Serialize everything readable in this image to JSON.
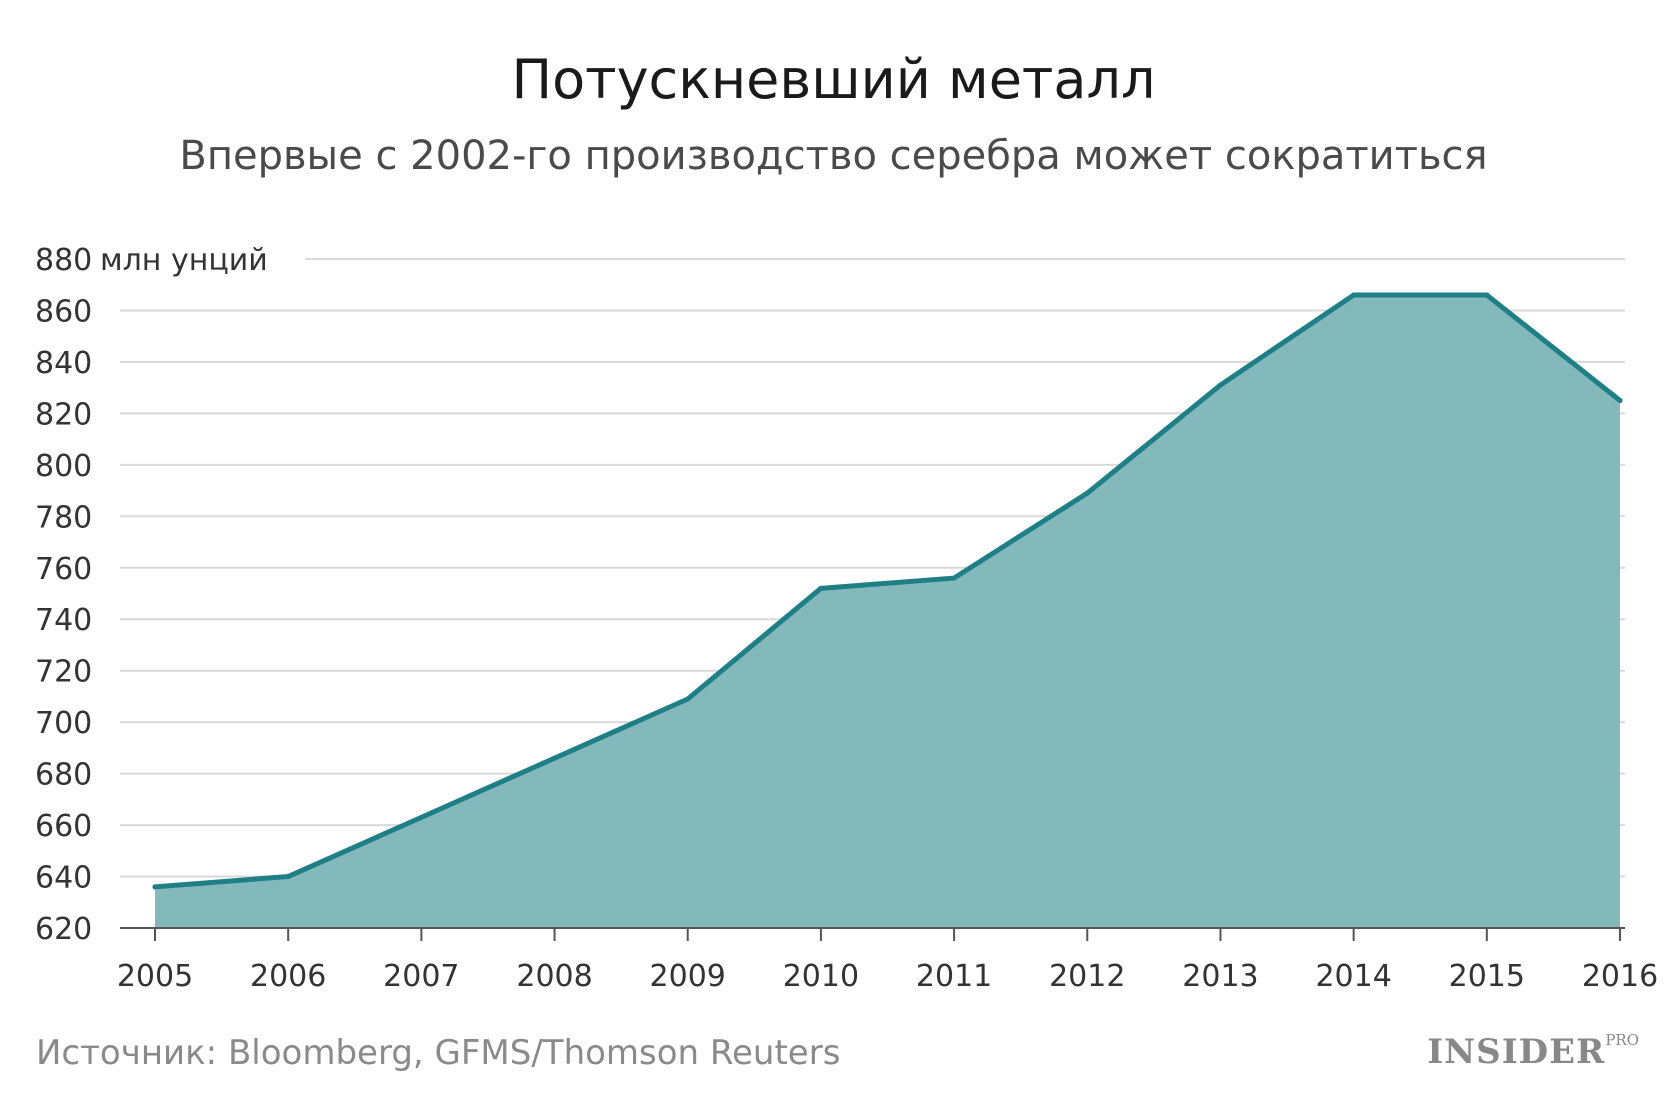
{
  "title": "Потускневший металл",
  "subtitle": "Впервые с 2002-го производство серебра может сократиться",
  "source": "Источник: Bloomberg, GFMS/Thomson Reuters",
  "logo": {
    "main": "INSIDER",
    "sup": "PRO"
  },
  "colors": {
    "line": "#1f7f86",
    "fill": "#84b9bc",
    "grid": "#d9d9d9",
    "axis": "#555555"
  },
  "chart_data": {
    "type": "area",
    "x": [
      "2005",
      "2006",
      "2007",
      "2008",
      "2009",
      "2010",
      "2011",
      "2012",
      "2013",
      "2014",
      "2015",
      "2016"
    ],
    "series": [
      {
        "values": [
          636,
          640,
          663,
          686,
          709,
          752,
          756,
          789,
          831,
          866,
          866,
          825
        ]
      }
    ],
    "yunit": "млн унций",
    "ylim": [
      620,
      880
    ],
    "yticks": [
      620,
      640,
      660,
      680,
      700,
      720,
      740,
      760,
      780,
      800,
      820,
      840,
      860,
      880
    ],
    "grid": true
  }
}
